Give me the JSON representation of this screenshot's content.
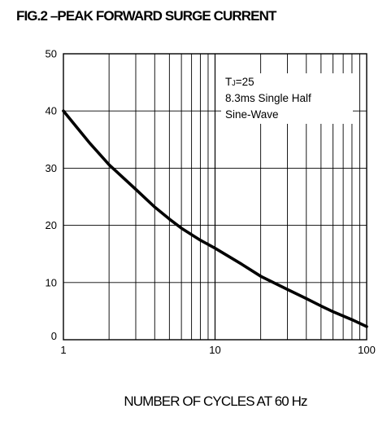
{
  "chart_data": {
    "type": "line",
    "title": "FIG.2 –PEAK FORWARD SURGE CURRENT",
    "xlabel": "NUMBER OF CYCLES AT 60 Hz",
    "ylabel": "",
    "x_scale": "log",
    "xlim": [
      1,
      100
    ],
    "ylim": [
      0,
      50
    ],
    "x_ticks": [
      1,
      10,
      100
    ],
    "x_tick_labels": [
      "1",
      "10",
      "100"
    ],
    "y_ticks": [
      0,
      10,
      20,
      30,
      40,
      50
    ],
    "y_tick_labels": [
      "0",
      "10",
      "20",
      "30",
      "40",
      "50"
    ],
    "grid": true,
    "annotation": {
      "line1_main": "T",
      "line1_sub": "J",
      "line1_rest": "=25",
      "line2": "8.3ms Single Half",
      "line3": "Sine-Wave"
    },
    "series": [
      {
        "x": [
          1,
          1.5,
          2,
          3,
          4,
          5,
          6,
          8,
          10,
          15,
          20,
          30,
          40,
          50,
          60,
          80,
          100
        ],
        "values": [
          40,
          34.3,
          30.6,
          26.3,
          23.2,
          21.1,
          19.5,
          17.4,
          16,
          13.2,
          11.1,
          8.8,
          7.2,
          5.9,
          4.9,
          3.5,
          2.3
        ]
      }
    ]
  }
}
